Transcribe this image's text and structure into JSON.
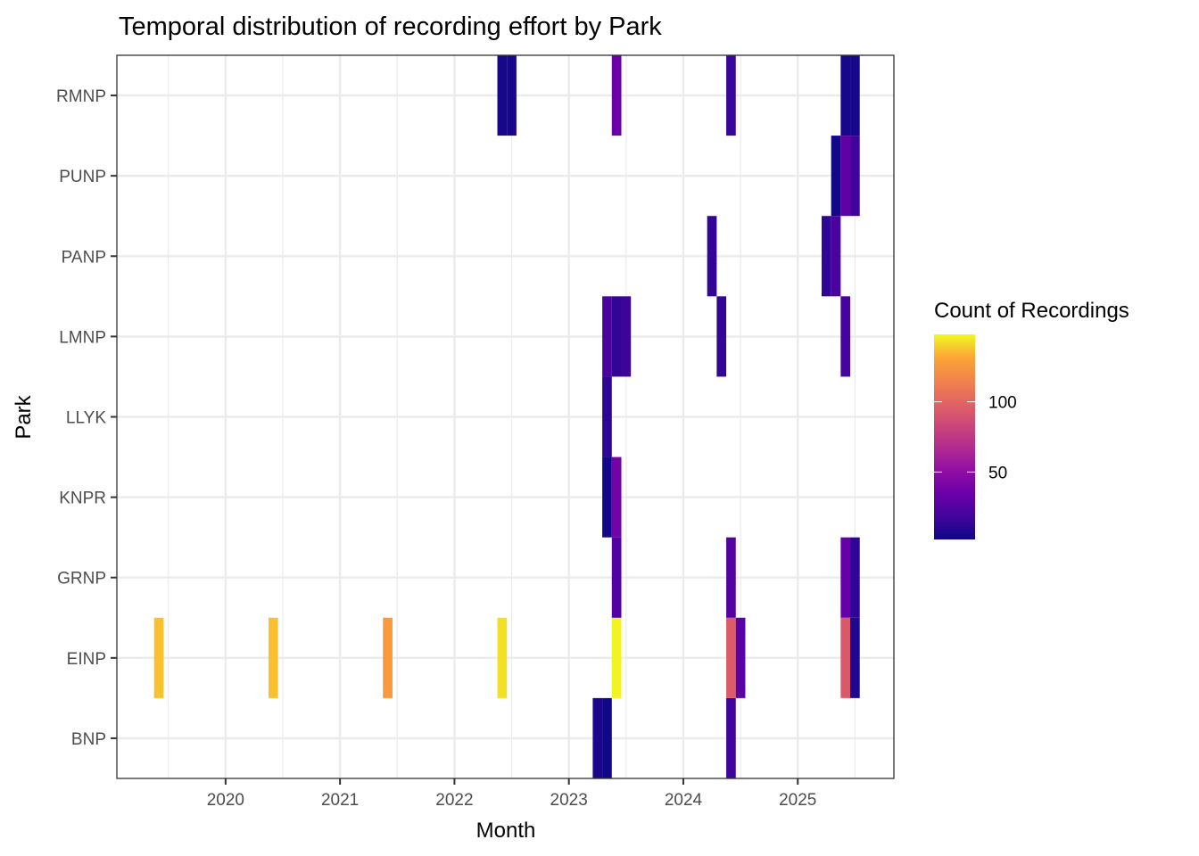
{
  "chart_data": {
    "type": "heatmap",
    "title": "Temporal distribution of recording effort by Park",
    "xlabel": "Month",
    "ylabel": "Park",
    "x_ticks": [
      "2020",
      "2021",
      "2022",
      "2023",
      "2024",
      "2025"
    ],
    "x_tick_values": [
      2020,
      2021,
      2022,
      2023,
      2024,
      2025
    ],
    "xlim": [
      2019.05,
      2025.84
    ],
    "categories": [
      "BNP",
      "EINP",
      "GRNP",
      "KNPR",
      "LLYK",
      "LMNP",
      "PANP",
      "PUNP",
      "RMNP"
    ],
    "grid": true,
    "legend": {
      "title": "Count of Recordings",
      "position": "right",
      "colormap": "plasma",
      "range": [
        2,
        148
      ],
      "ticks": [
        50,
        100
      ],
      "tick_labels": [
        "50",
        "100"
      ]
    },
    "cells": [
      {
        "park": "BNP",
        "month": "2023-04",
        "count": 6
      },
      {
        "park": "BNP",
        "month": "2023-05",
        "count": 3
      },
      {
        "park": "BNP",
        "month": "2024-06",
        "count": 18
      },
      {
        "park": "EINP",
        "month": "2019-06",
        "count": 137
      },
      {
        "park": "EINP",
        "month": "2020-06",
        "count": 137
      },
      {
        "park": "EINP",
        "month": "2021-06",
        "count": 125
      },
      {
        "park": "EINP",
        "month": "2022-06",
        "count": 143
      },
      {
        "park": "EINP",
        "month": "2023-06",
        "count": 147
      },
      {
        "park": "EINP",
        "month": "2024-06",
        "count": 95
      },
      {
        "park": "EINP",
        "month": "2024-07",
        "count": 28
      },
      {
        "park": "EINP",
        "month": "2025-06",
        "count": 93
      },
      {
        "park": "EINP",
        "month": "2025-07",
        "count": 8
      },
      {
        "park": "GRNP",
        "month": "2023-06",
        "count": 25
      },
      {
        "park": "GRNP",
        "month": "2024-06",
        "count": 26
      },
      {
        "park": "GRNP",
        "month": "2025-06",
        "count": 33
      },
      {
        "park": "GRNP",
        "month": "2025-07",
        "count": 12
      },
      {
        "park": "KNPR",
        "month": "2023-05",
        "count": 4
      },
      {
        "park": "KNPR",
        "month": "2023-06",
        "count": 38
      },
      {
        "park": "LLYK",
        "month": "2023-05",
        "count": 12
      },
      {
        "park": "LMNP",
        "month": "2023-05",
        "count": 22
      },
      {
        "park": "LMNP",
        "month": "2023-06",
        "count": 14
      },
      {
        "park": "LMNP",
        "month": "2023-07",
        "count": 17
      },
      {
        "park": "LMNP",
        "month": "2024-05",
        "count": 14
      },
      {
        "park": "LMNP",
        "month": "2025-06",
        "count": 20
      },
      {
        "park": "PANP",
        "month": "2024-04",
        "count": 14
      },
      {
        "park": "PANP",
        "month": "2025-04",
        "count": 13
      },
      {
        "park": "PANP",
        "month": "2025-05",
        "count": 22
      },
      {
        "park": "PUNP",
        "month": "2025-05",
        "count": 4
      },
      {
        "park": "PUNP",
        "month": "2025-06",
        "count": 30
      },
      {
        "park": "PUNP",
        "month": "2025-07",
        "count": 18
      },
      {
        "park": "RMNP",
        "month": "2022-06",
        "count": 5
      },
      {
        "park": "RMNP",
        "month": "2022-07",
        "count": 5
      },
      {
        "park": "RMNP",
        "month": "2023-06",
        "count": 35
      },
      {
        "park": "RMNP",
        "month": "2024-06",
        "count": 16
      },
      {
        "park": "RMNP",
        "month": "2025-06",
        "count": 5
      },
      {
        "park": "RMNP",
        "month": "2025-07",
        "count": 5
      }
    ]
  }
}
